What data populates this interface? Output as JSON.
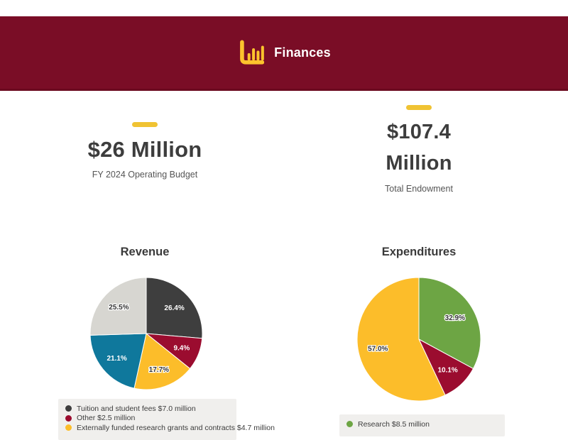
{
  "header": {
    "title": "Finances",
    "background": "#7a0d26",
    "icon_color": "#fcc32d"
  },
  "accent_gold": "#f0c333",
  "stats": [
    {
      "value": "$26 Million",
      "label": "FY 2024 Operating Budget"
    },
    {
      "value": "$107.4 Million",
      "label": "Total Endowment"
    }
  ],
  "chart_data": [
    {
      "type": "pie",
      "title": "Revenue",
      "radius": 79,
      "slices": [
        {
          "pct": 26.4,
          "pct_label": "26.4%",
          "color": "#3e3e3e",
          "label_style": "light"
        },
        {
          "pct": 9.4,
          "pct_label": "9.4%",
          "color": "#9b0c2f",
          "label_style": "light"
        },
        {
          "pct": 17.7,
          "pct_label": "17.7%",
          "color": "#fcbd2a",
          "label_style": "dark-outline"
        },
        {
          "pct": 21.1,
          "pct_label": "21.1%",
          "color": "#0f789c",
          "label_style": "light"
        },
        {
          "pct": 25.5,
          "pct_label": "25.5%",
          "color": "#d7d6d1",
          "label_style": "dark-outline"
        }
      ],
      "legend": [
        {
          "color": "#3e3e3e",
          "label": "Tuition and student fees $7.0 million"
        },
        {
          "color": "#9b0c2f",
          "label": "Other $2.5 million"
        },
        {
          "color": "#fcbd2a",
          "label": "Externally funded research grants and contracts $4.7 million"
        }
      ],
      "legend_position": "bottom"
    },
    {
      "type": "pie",
      "title": "Expenditures",
      "radius": 87,
      "slices": [
        {
          "pct": 32.9,
          "pct_label": "32.9%",
          "color": "#6da544",
          "label_style": "dark-outline"
        },
        {
          "pct": 10.1,
          "pct_label": "10.1%",
          "color": "#9b0c2f",
          "label_style": "light"
        },
        {
          "pct": 57.0,
          "pct_label": "57.0%",
          "color": "#fcbd2a",
          "label_style": "dark-outline"
        }
      ],
      "legend": [
        {
          "color": "#6da544",
          "label": "Research $8.5 million"
        }
      ],
      "legend_position": "bottom"
    }
  ]
}
